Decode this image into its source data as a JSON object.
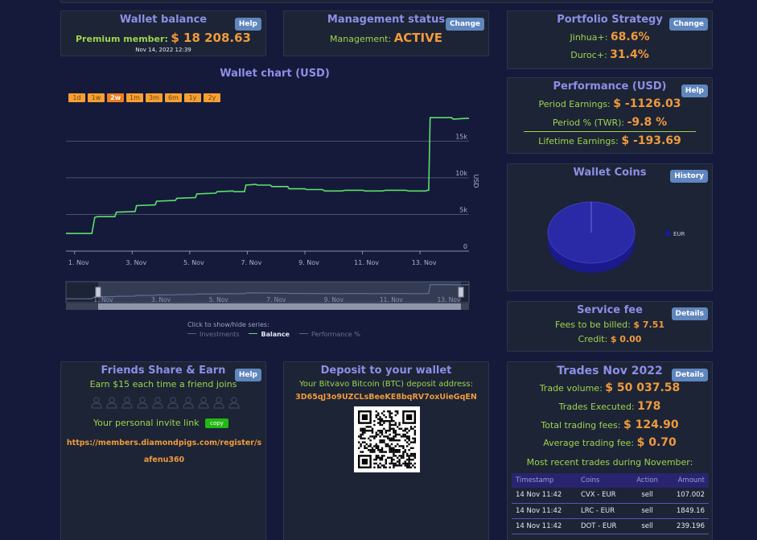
{
  "wallet": {
    "title": "Wallet balance",
    "help": "Help",
    "label": "Premium member:",
    "amount": "$ 18 208.63",
    "timestamp": "Nov 14, 2022 12:39"
  },
  "management": {
    "title": "Management status",
    "change": "Change",
    "label": "Management:",
    "value": "ACTIVE"
  },
  "strategy": {
    "title": "Portfolio Strategy",
    "change": "Change",
    "items": [
      {
        "label": "Jinhua+:",
        "value": "68.6%"
      },
      {
        "label": "Duroc+:",
        "value": "31.4%"
      }
    ]
  },
  "performance": {
    "title": "Performance (USD)",
    "help": "Help",
    "earnings_label": "Period Earnings:",
    "earnings_value": "$ -1126.03",
    "twr_label": "Period % (TWR):",
    "twr_value": "-9.8 %",
    "lifetime_label": "Lifetime Earnings:",
    "lifetime_value": "$ -193.69"
  },
  "coins": {
    "title": "Wallet Coins",
    "history": "History",
    "legend": "EUR"
  },
  "fees": {
    "title": "Service fee",
    "details": "Details",
    "billed_label": "Fees to be billed:",
    "billed_value": "$ 7.51",
    "credit_label": "Credit:",
    "credit_value": "$ 0.00"
  },
  "chart_data": {
    "type": "line",
    "title": "Wallet chart (USD)",
    "ylabel": "USD",
    "ylim": [
      0,
      18000
    ],
    "range_buttons": [
      "1d",
      "1w",
      "2w",
      "1m",
      "3m",
      "6m",
      "1y",
      "2y"
    ],
    "active_range": "2w",
    "x_ticks": [
      "1. Nov",
      "3. Nov",
      "5. Nov",
      "7. Nov",
      "9. Nov",
      "11. Nov",
      "13. Nov"
    ],
    "y_ticks": [
      "0",
      "5k",
      "10k",
      "15k"
    ],
    "nav_ticks": [
      "1. Nov",
      "3. Nov",
      "5. Nov",
      "7. Nov",
      "9. Nov",
      "11. Nov",
      "13. Nov"
    ],
    "legend_hint": "Click to show/hide series:",
    "series": [
      {
        "name": "Investments",
        "color": "#5c6375",
        "visible": false
      },
      {
        "name": "Balance",
        "color": "#5ee06a",
        "visible": true,
        "x": [
          0,
          0.3,
          0.9,
          1.0,
          1.1,
          1.7,
          1.75,
          2.4,
          2.45,
          3.1,
          3.15,
          3.8,
          3.85,
          4.5,
          4.55,
          5.2,
          5.25,
          5.8,
          5.85,
          6.2,
          6.25,
          6.6,
          6.65,
          7.1,
          7.15,
          7.7,
          7.75,
          8.3,
          8.35,
          8.9,
          9.0,
          9.6,
          9.7,
          10.3,
          10.4,
          11.0,
          11.1,
          11.8,
          11.9,
          12.5,
          12.55,
          12.6,
          12.65,
          13.4,
          13.45,
          13.9,
          14.0
        ],
        "values": [
          2400,
          2400,
          2400,
          4600,
          4700,
          4700,
          5300,
          5400,
          6200,
          6300,
          6800,
          6900,
          7200,
          7300,
          7800,
          7900,
          8100,
          8200,
          8100,
          8100,
          9000,
          9100,
          9000,
          9000,
          8800,
          8800,
          8500,
          8500,
          8400,
          8400,
          8200,
          8200,
          8300,
          8300,
          8200,
          8200,
          8300,
          8300,
          8200,
          8200,
          8300,
          8300,
          18200,
          18200,
          18000,
          18100,
          18100
        ]
      },
      {
        "name": "Performance %",
        "color": "#5c6375",
        "visible": false
      }
    ]
  },
  "friends": {
    "title": "Friends Share & Earn",
    "help": "Help",
    "earn_text": "Earn $15 each time a friend joins",
    "invite_label": "Your personal invite link",
    "copy": "copy",
    "link": "https://members.diamondpigs.com/register/safenu360"
  },
  "deposit": {
    "title": "Deposit to your wallet",
    "text": "Your Bitvavo Bitcoin (BTC) deposit address:",
    "address": "3D65qJ3o9UZCLsBeeKE8bqRV7oxUieGqEN"
  },
  "trades": {
    "title": "Trades Nov 2022",
    "details": "Details",
    "volume_label": "Trade volume:",
    "volume_value": "$ 50 037.58",
    "executed_label": "Trades Executed:",
    "executed_value": "178",
    "fees_label": "Total trading fees:",
    "fees_value": "$ 124.90",
    "avg_label": "Average trading fee:",
    "avg_value": "$ 0.70",
    "recent_label": "Most recent trades during November:",
    "columns": [
      "Timestamp",
      "Coins",
      "Action",
      "Amount"
    ],
    "rows": [
      [
        "14 Nov 11:42",
        "CVX - EUR",
        "sell",
        "107.002"
      ],
      [
        "14 Nov 11:42",
        "LRC - EUR",
        "sell",
        "1849.16"
      ],
      [
        "14 Nov 11:42",
        "DOT - EUR",
        "sell",
        "239.196"
      ]
    ]
  }
}
